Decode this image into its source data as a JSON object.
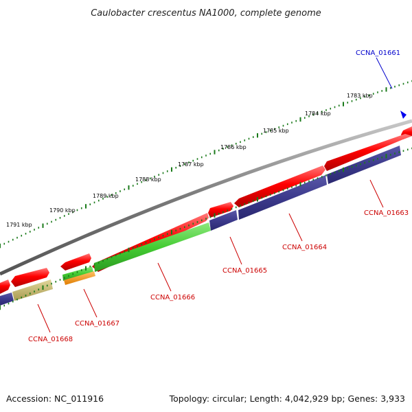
{
  "title": "Caulobacter crescentus NA1000, complete genome",
  "ticks": [
    "1783 kbp",
    "1784 kbp",
    "1785 kbp",
    "1786 kbp",
    "1787 kbp",
    "1788 kbp",
    "1789 kbp",
    "1790 kbp",
    "1791 kbp"
  ],
  "genes": [
    {
      "name": "CCNA_01661",
      "color": "#0000cc"
    },
    {
      "name": "CCNA_01663",
      "color": "#cc0000"
    },
    {
      "name": "CCNA_01664",
      "color": "#cc0000"
    },
    {
      "name": "CCNA_01665",
      "color": "#cc0000"
    },
    {
      "name": "CCNA_01666",
      "color": "#cc0000"
    },
    {
      "name": "CCNA_01667",
      "color": "#cc0000"
    },
    {
      "name": "CCNA_01668",
      "color": "#cc0000"
    }
  ],
  "colors": {
    "backbone": "#808080",
    "feature_red": "#ff0000",
    "cds_navy": "#3c3a8c",
    "gene_green": "#44cc33",
    "gene_orange": "#ff9900",
    "gene_olive": "#c8bb6e",
    "tick_green": "#1a7a1a",
    "marker_blue": "#0000ee"
  },
  "footer": {
    "accession": "Accession: NC_011916",
    "topology": "Topology: circular; Length: 4,042,929 bp; Genes: 3,933"
  }
}
